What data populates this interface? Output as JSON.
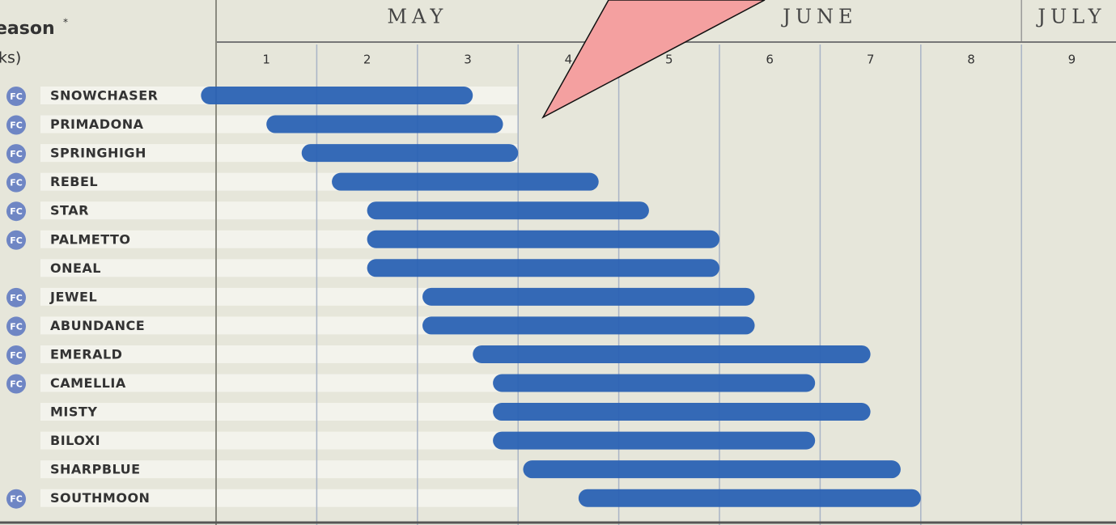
{
  "chart_data": {
    "type": "range-bar",
    "title": "eason",
    "title_mark": "*",
    "subtitle": "ks)",
    "badge_label": "FC",
    "color": "#2a62b4",
    "weeks": [
      "1",
      "2",
      "3",
      "4",
      "5",
      "6",
      "7",
      "8",
      "9"
    ],
    "xlim": [
      0,
      9
    ],
    "months": [
      {
        "name": "MAY",
        "start": 0,
        "end": 4
      },
      {
        "name": "JUNE",
        "start": 4,
        "end": 8
      },
      {
        "name": "JULY",
        "start": 8,
        "end": 9
      }
    ],
    "rows": [
      {
        "name": "SNOWCHASER",
        "start": -0.15,
        "end": 2.55,
        "fc": true
      },
      {
        "name": "PRIMADONA",
        "start": 0.5,
        "end": 2.85,
        "fc": true
      },
      {
        "name": "SPRINGHIGH",
        "start": 0.85,
        "end": 3.0,
        "fc": true
      },
      {
        "name": "REBEL",
        "start": 1.15,
        "end": 3.8,
        "fc": true
      },
      {
        "name": "STAR",
        "start": 1.5,
        "end": 4.3,
        "fc": true
      },
      {
        "name": "PALMETTO",
        "start": 1.5,
        "end": 5.0,
        "fc": true
      },
      {
        "name": "ONEAL",
        "start": 1.5,
        "end": 5.0,
        "fc": false
      },
      {
        "name": "JEWEL",
        "start": 2.05,
        "end": 5.35,
        "fc": true
      },
      {
        "name": "ABUNDANCE",
        "start": 2.05,
        "end": 5.35,
        "fc": true
      },
      {
        "name": "EMERALD",
        "start": 2.55,
        "end": 6.5,
        "fc": true
      },
      {
        "name": "CAMELLIA",
        "start": 2.75,
        "end": 5.95,
        "fc": true
      },
      {
        "name": "MISTY",
        "start": 2.75,
        "end": 6.5,
        "fc": false
      },
      {
        "name": "BILOXI",
        "start": 2.75,
        "end": 5.95,
        "fc": false
      },
      {
        "name": "SHARPBLUE",
        "start": 3.05,
        "end": 6.8,
        "fc": false
      },
      {
        "name": "SOUTHMOON",
        "start": 3.6,
        "end": 7.0,
        "fc": true
      }
    ]
  }
}
